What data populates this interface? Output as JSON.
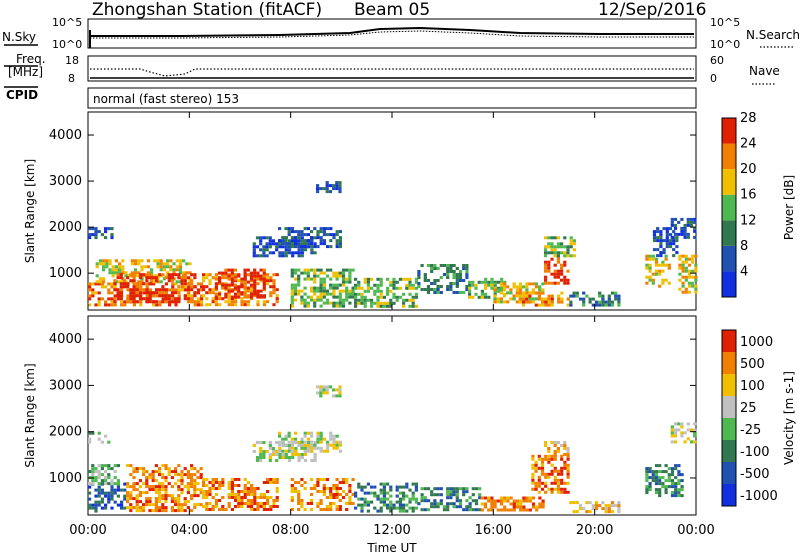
{
  "header": {
    "station": "Zhongshan Station (fitACF)",
    "beam": "Beam 05",
    "date": "12/Sep/2016"
  },
  "top_panels": {
    "nsky_label": "N.Sky",
    "nsky_ticks": [
      "10^5",
      "10^0"
    ],
    "nsearch_label": "N.Search",
    "nsearch_ticks": [
      "10^5",
      "10^0"
    ],
    "freq_label": "Freq.",
    "freq_unit": "[MHz]",
    "freq_ticks": [
      "18",
      "8"
    ],
    "nave_label": "Nave",
    "nave_ticks": [
      "60",
      "0"
    ],
    "cpid_label": "CPID",
    "cpid_text": "normal (fast stereo) 153"
  },
  "chart_data": [
    {
      "type": "heatmap",
      "name": "power",
      "ylabel": "Slant Range [km]",
      "xlabel": "Time UT",
      "yticks": [
        "1000",
        "2000",
        "3000",
        "4000"
      ],
      "ylim": [
        200,
        4500
      ],
      "xticks": [
        "00:00",
        "04:00",
        "08:00",
        "12:00",
        "16:00",
        "20:00",
        "00:00"
      ],
      "xlim": [
        0,
        24
      ],
      "colorbar": {
        "label": "Power [dB]",
        "ticks": [
          "4",
          "8",
          "12",
          "16",
          "20",
          "24",
          "28"
        ],
        "colors": [
          "#1030e0",
          "#2050b0",
          "#307850",
          "#50b850",
          "#f0c000",
          "#f08000",
          "#e02000"
        ]
      },
      "patches": [
        {
          "t": [
            0.0,
            4.5
          ],
          "r": [
            300,
            800
          ],
          "level": 5
        },
        {
          "t": [
            0.3,
            4.0
          ],
          "r": [
            800,
            1300
          ],
          "level": 4
        },
        {
          "t": [
            1.0,
            4.2
          ],
          "r": [
            400,
            1000
          ],
          "level": 6
        },
        {
          "t": [
            4.5,
            7.5
          ],
          "r": [
            300,
            1000
          ],
          "level": 5
        },
        {
          "t": [
            5.0,
            7.0
          ],
          "r": [
            500,
            1100
          ],
          "level": 6
        },
        {
          "t": [
            0.0,
            1.0
          ],
          "r": [
            1800,
            2000
          ],
          "level": 1
        },
        {
          "t": [
            6.5,
            9.0
          ],
          "r": [
            1400,
            1800
          ],
          "level": 1
        },
        {
          "t": [
            7.5,
            10.0
          ],
          "r": [
            1600,
            2000
          ],
          "level": 1
        },
        {
          "t": [
            9.0,
            10.0
          ],
          "r": [
            2800,
            3000
          ],
          "level": 1
        },
        {
          "t": [
            8.0,
            10.5
          ],
          "r": [
            300,
            1100
          ],
          "level": 3
        },
        {
          "t": [
            10.5,
            13.0
          ],
          "r": [
            300,
            900
          ],
          "level": 3
        },
        {
          "t": [
            13.0,
            15.0
          ],
          "r": [
            600,
            1200
          ],
          "level": 2
        },
        {
          "t": [
            15.0,
            16.5
          ],
          "r": [
            500,
            900
          ],
          "level": 3
        },
        {
          "t": [
            16.0,
            18.0
          ],
          "r": [
            400,
            800
          ],
          "level": 4
        },
        {
          "t": [
            17.0,
            19.0
          ],
          "r": [
            300,
            600
          ],
          "level": 5
        },
        {
          "t": [
            18.0,
            19.0
          ],
          "r": [
            800,
            1400
          ],
          "level": 6
        },
        {
          "t": [
            18.0,
            19.2
          ],
          "r": [
            1400,
            1800
          ],
          "level": 3
        },
        {
          "t": [
            19.0,
            21.0
          ],
          "r": [
            300,
            600
          ],
          "level": 2
        },
        {
          "t": [
            22.0,
            23.0
          ],
          "r": [
            700,
            1400
          ],
          "level": 4
        },
        {
          "t": [
            22.3,
            23.2
          ],
          "r": [
            1400,
            2000
          ],
          "level": 1
        },
        {
          "t": [
            23.0,
            24.0
          ],
          "r": [
            1800,
            2200
          ],
          "level": 1
        },
        {
          "t": [
            23.3,
            24.0
          ],
          "r": [
            600,
            1400
          ],
          "level": 4
        }
      ]
    },
    {
      "type": "heatmap",
      "name": "velocity",
      "ylabel": "Slant Range [km]",
      "xlabel": "Time UT",
      "yticks": [
        "1000",
        "2000",
        "3000",
        "4000"
      ],
      "ylim": [
        200,
        4500
      ],
      "xticks": [
        "00:00",
        "04:00",
        "08:00",
        "12:00",
        "16:00",
        "20:00",
        "00:00"
      ],
      "xlim": [
        0,
        24
      ],
      "colorbar": {
        "label": "Velocity [m s-1]",
        "ticks": [
          "1000",
          "500",
          "100",
          "25",
          "-25",
          "-100",
          "-500",
          "-1000"
        ],
        "colors": [
          "#1030e0",
          "#2050b0",
          "#307850",
          "#50b850",
          "#c0c0c0",
          "#f0c000",
          "#f08000",
          "#e02000"
        ]
      },
      "patches": [
        {
          "t": [
            0.0,
            1.5
          ],
          "r": [
            300,
            900
          ],
          "level": 1
        },
        {
          "t": [
            0.0,
            1.2
          ],
          "r": [
            900,
            1300
          ],
          "level": 3
        },
        {
          "t": [
            1.5,
            4.5
          ],
          "r": [
            300,
            1300
          ],
          "level": 6
        },
        {
          "t": [
            4.5,
            7.5
          ],
          "r": [
            300,
            1000
          ],
          "level": 6
        },
        {
          "t": [
            0.0,
            0.8
          ],
          "r": [
            1800,
            2000
          ],
          "level": 3
        },
        {
          "t": [
            6.5,
            9.0
          ],
          "r": [
            1400,
            1800
          ],
          "level": 4
        },
        {
          "t": [
            7.5,
            10.0
          ],
          "r": [
            1600,
            2000
          ],
          "level": 4
        },
        {
          "t": [
            9.0,
            10.0
          ],
          "r": [
            2800,
            3000
          ],
          "level": 4
        },
        {
          "t": [
            8.0,
            10.5
          ],
          "r": [
            300,
            1000
          ],
          "level": 6
        },
        {
          "t": [
            10.5,
            13.0
          ],
          "r": [
            300,
            900
          ],
          "level": 2
        },
        {
          "t": [
            13.0,
            15.5
          ],
          "r": [
            300,
            800
          ],
          "level": 2
        },
        {
          "t": [
            15.5,
            18.0
          ],
          "r": [
            300,
            600
          ],
          "level": 6
        },
        {
          "t": [
            17.5,
            19.0
          ],
          "r": [
            700,
            1500
          ],
          "level": 6
        },
        {
          "t": [
            18.0,
            19.0
          ],
          "r": [
            1500,
            1800
          ],
          "level": 5
        },
        {
          "t": [
            19.0,
            21.0
          ],
          "r": [
            300,
            500
          ],
          "level": 5
        },
        {
          "t": [
            22.0,
            23.5
          ],
          "r": [
            600,
            1300
          ],
          "level": 2
        },
        {
          "t": [
            23.0,
            24.0
          ],
          "r": [
            1800,
            2200
          ],
          "level": 4
        }
      ]
    }
  ]
}
